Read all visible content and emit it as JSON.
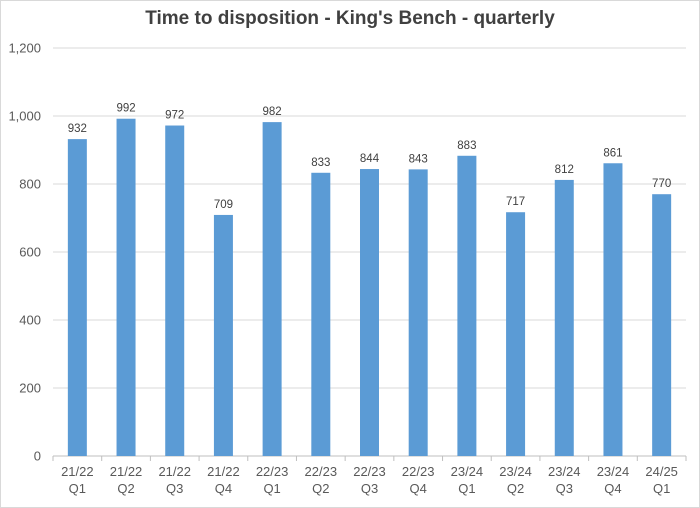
{
  "chart_data": {
    "type": "bar",
    "title": "Time to disposition - King's Bench - quarterly",
    "xlabel": "",
    "ylabel": "",
    "categories": [
      [
        "21/22",
        "Q1"
      ],
      [
        "21/22",
        "Q2"
      ],
      [
        "21/22",
        "Q3"
      ],
      [
        "21/22",
        "Q4"
      ],
      [
        "22/23",
        "Q1"
      ],
      [
        "22/23",
        "Q2"
      ],
      [
        "22/23",
        "Q3"
      ],
      [
        "22/23",
        "Q4"
      ],
      [
        "23/24",
        "Q1"
      ],
      [
        "23/24",
        "Q2"
      ],
      [
        "23/24",
        "Q3"
      ],
      [
        "23/24",
        "Q4"
      ],
      [
        "24/25",
        "Q1"
      ]
    ],
    "series": [
      {
        "values": [
          932,
          992,
          972,
          709,
          982,
          833,
          844,
          843,
          883,
          717,
          812,
          861,
          770
        ],
        "color": "#5b9bd5"
      }
    ],
    "data_labels": [
      "932",
      "992",
      "972",
      "709",
      "982",
      "833",
      "844",
      "843",
      "883",
      "717",
      "812",
      "861",
      "770"
    ],
    "ylim": [
      0,
      1200
    ],
    "yticks": [
      0,
      200,
      400,
      600,
      800,
      1000,
      1200
    ],
    "ytick_labels": [
      "0",
      "200",
      "400",
      "600",
      "800",
      "1,000",
      "1,200"
    ],
    "grid": true,
    "legend": "none"
  }
}
